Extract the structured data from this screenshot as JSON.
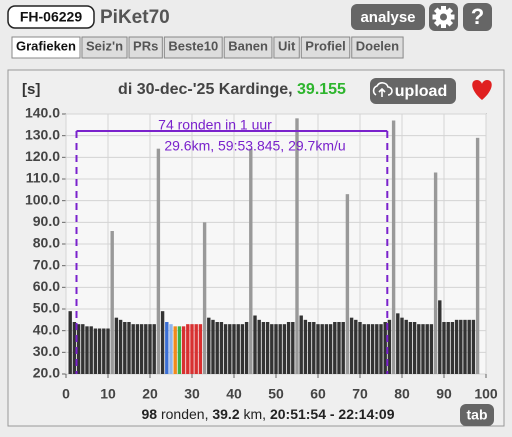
{
  "header": {
    "badge": "FH-06229",
    "title": "PiKet70",
    "analyse": "analyse",
    "help": "?"
  },
  "tabs": [
    "Grafieken",
    "Seiz'n",
    "PRs",
    "Beste10",
    "Banen",
    "Uit",
    "Profiel",
    "Doelen"
  ],
  "chart_data": {
    "type": "bar",
    "unit": "[s]",
    "title": "di 30-dec-'25 Kardinge, ",
    "title_value": "39.155",
    "upload": "upload",
    "annotation": [
      "74 ronden in 1 uur",
      "29.6km, 59:53.845, 29.7km/u"
    ],
    "hour_window": [
      2.5,
      76.5
    ],
    "x": [
      1,
      2,
      3,
      4,
      5,
      6,
      7,
      8,
      9,
      10,
      11,
      12,
      13,
      14,
      15,
      16,
      17,
      18,
      19,
      20,
      21,
      22,
      23,
      24,
      25,
      26,
      27,
      28,
      29,
      30,
      31,
      32,
      33,
      34,
      35,
      36,
      37,
      38,
      39,
      40,
      41,
      42,
      43,
      44,
      45,
      46,
      47,
      48,
      49,
      50,
      51,
      52,
      53,
      54,
      55,
      56,
      57,
      58,
      59,
      60,
      61,
      62,
      63,
      64,
      65,
      66,
      67,
      68,
      69,
      70,
      71,
      72,
      73,
      74,
      75,
      76,
      77,
      78,
      79,
      80,
      81,
      82,
      83,
      84,
      85,
      86,
      87,
      88,
      89,
      90,
      91,
      92,
      93,
      94,
      95,
      96,
      97,
      98
    ],
    "values": [
      49,
      44,
      43,
      43,
      42,
      42,
      41,
      41,
      41,
      41,
      86,
      46,
      45,
      44,
      44,
      43,
      43,
      43,
      43,
      43,
      43,
      124,
      49,
      44,
      43,
      42,
      42,
      42,
      43,
      43,
      43,
      43,
      90,
      46,
      45,
      44,
      44,
      43,
      43,
      43,
      43,
      43,
      44,
      124,
      47,
      45,
      44,
      44,
      43,
      43,
      43,
      43,
      44,
      44,
      138,
      47,
      45,
      44,
      44,
      43,
      43,
      43,
      43,
      44,
      44,
      44,
      103,
      46,
      45,
      44,
      43,
      43,
      43,
      43,
      43,
      44,
      45,
      137,
      48,
      46,
      45,
      44,
      44,
      43,
      43,
      43,
      43,
      113,
      54,
      44,
      44,
      44,
      45,
      45,
      45,
      45,
      45,
      129
    ],
    "colors": [
      "#333",
      "#333",
      "#333",
      "#333",
      "#333",
      "#333",
      "#333",
      "#333",
      "#333",
      "#333",
      "#999",
      "#333",
      "#333",
      "#333",
      "#333",
      "#333",
      "#333",
      "#333",
      "#333",
      "#333",
      "#333",
      "#999",
      "#333",
      "#3b6fd4",
      "#8fb4ee",
      "#f08a1c",
      "#3cb043",
      "#d83030",
      "#d83030",
      "#d83030",
      "#d83030",
      "#d83030",
      "#999",
      "#333",
      "#333",
      "#333",
      "#333",
      "#333",
      "#333",
      "#333",
      "#333",
      "#333",
      "#333",
      "#999",
      "#333",
      "#333",
      "#333",
      "#333",
      "#333",
      "#333",
      "#333",
      "#333",
      "#333",
      "#333",
      "#999",
      "#333",
      "#333",
      "#333",
      "#333",
      "#333",
      "#333",
      "#333",
      "#333",
      "#333",
      "#333",
      "#333",
      "#999",
      "#333",
      "#333",
      "#333",
      "#333",
      "#333",
      "#333",
      "#333",
      "#333",
      "#333",
      "#333",
      "#999",
      "#333",
      "#333",
      "#333",
      "#333",
      "#333",
      "#333",
      "#333",
      "#333",
      "#333",
      "#999",
      "#333",
      "#333",
      "#333",
      "#333",
      "#333",
      "#333",
      "#333",
      "#333",
      "#333",
      "#999"
    ],
    "xlim": [
      0,
      100
    ],
    "xticks": [
      0,
      10,
      20,
      30,
      40,
      50,
      60,
      70,
      80,
      90,
      100
    ],
    "ylim": [
      20,
      140
    ],
    "yticks": [
      {
        "value": 20,
        "label": "20.0"
      },
      {
        "value": 30,
        "label": "30.0"
      },
      {
        "value": 40,
        "label": "40.0"
      },
      {
        "value": 50,
        "label": "50.0"
      },
      {
        "value": 60,
        "label": "60.0"
      },
      {
        "value": 70,
        "label": "70.0"
      },
      {
        "value": 80,
        "label": "80.0"
      },
      {
        "value": 90,
        "label": "90.0"
      },
      {
        "value": 100,
        "label": "100.0"
      },
      {
        "value": 110,
        "label": "110.0"
      },
      {
        "value": 120,
        "label": "120.0"
      },
      {
        "value": 130,
        "label": "130.0"
      },
      {
        "value": 140,
        "label": "140.0"
      }
    ],
    "grid": true,
    "footer": [
      "98",
      " ronden, ",
      "39.2",
      " km, ",
      "20:51:54 - 22:14:09"
    ],
    "tab_button": "tab"
  }
}
